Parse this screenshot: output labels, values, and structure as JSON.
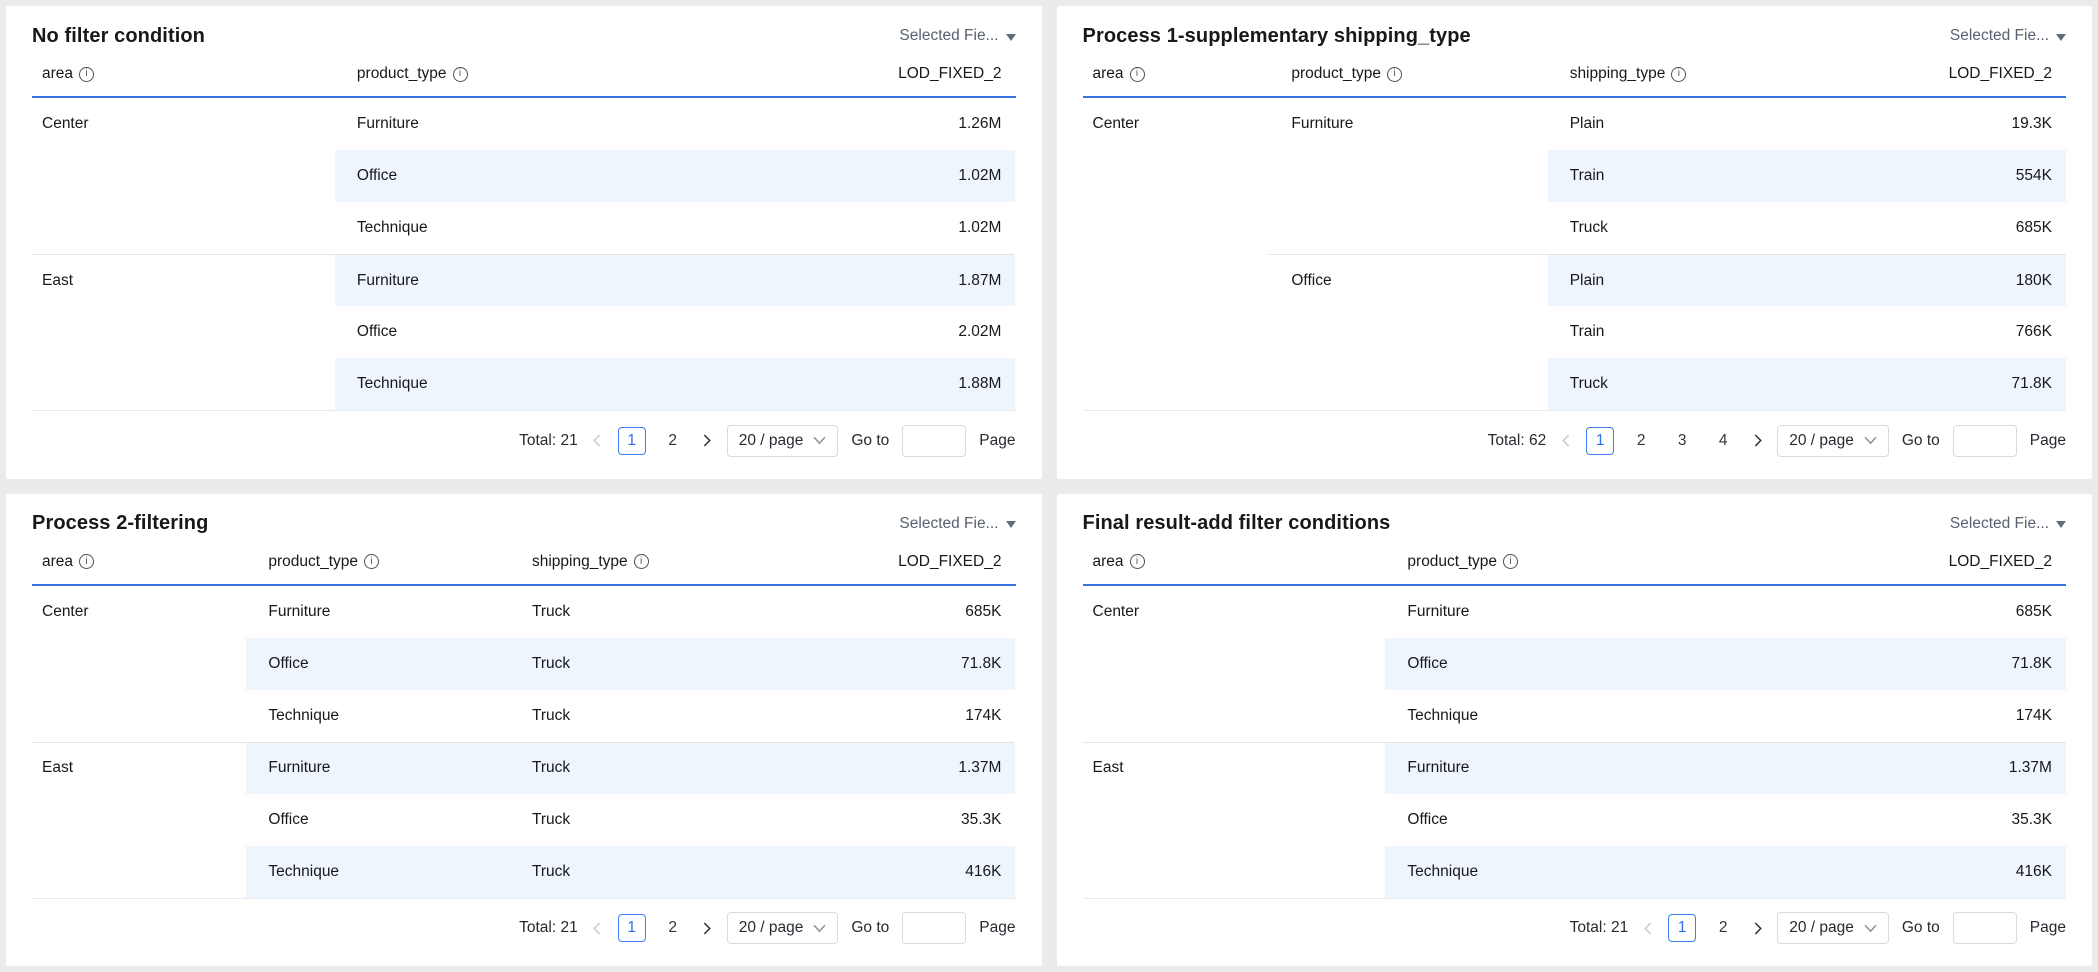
{
  "colors": {
    "accent_blue": "#3572e3",
    "stripe_bg": "#eff5fd",
    "active_page_blue": "#2f6ff2",
    "page_bg": "#ebebeb"
  },
  "panels": [
    {
      "title": "No filter condition",
      "selector_label": "Selected Fie...",
      "columns": [
        {
          "label": "area",
          "info": true
        },
        {
          "label": "product_type",
          "info": true
        },
        {
          "label": "LOD_FIXED_2",
          "info": false
        }
      ],
      "stripe_start_col": 1,
      "divider": {
        "row": 3,
        "start_col": 0
      },
      "rows": [
        [
          "Center",
          "Furniture",
          "1.26M"
        ],
        [
          "",
          "Office",
          "1.02M"
        ],
        [
          "",
          "Technique",
          "1.02M"
        ],
        [
          "East",
          "Furniture",
          "1.87M"
        ],
        [
          "",
          "Office",
          "2.02M"
        ],
        [
          "",
          "Technique",
          "1.88M"
        ]
      ],
      "pagination": {
        "total": "Total: 21",
        "pages": [
          "1",
          "2"
        ],
        "active": "1",
        "page_size": "20 / page",
        "goto_label": "Go to",
        "page_label": "Page"
      }
    },
    {
      "title": "Process 1-supplementary shipping_type",
      "selector_label": "Selected Fie...",
      "columns": [
        {
          "label": "area",
          "info": true
        },
        {
          "label": "product_type",
          "info": true
        },
        {
          "label": "shipping_type",
          "info": true
        },
        {
          "label": "LOD_FIXED_2",
          "info": false
        }
      ],
      "stripe_start_col": 2,
      "divider": {
        "row": 3,
        "start_col": 1
      },
      "rows": [
        [
          "Center",
          "Furniture",
          "Plain",
          "19.3K"
        ],
        [
          "",
          "",
          "Train",
          "554K"
        ],
        [
          "",
          "",
          "Truck",
          "685K"
        ],
        [
          "",
          "Office",
          "Plain",
          "180K"
        ],
        [
          "",
          "",
          "Train",
          "766K"
        ],
        [
          "",
          "",
          "Truck",
          "71.8K"
        ]
      ],
      "pagination": {
        "total": "Total: 62",
        "pages": [
          "1",
          "2",
          "3",
          "4"
        ],
        "active": "1",
        "page_size": "20 / page",
        "goto_label": "Go to",
        "page_label": "Page"
      }
    },
    {
      "title": "Process 2-filtering",
      "selector_label": "Selected Fie...",
      "columns": [
        {
          "label": "area",
          "info": true
        },
        {
          "label": "product_type",
          "info": true
        },
        {
          "label": "shipping_type",
          "info": true
        },
        {
          "label": "LOD_FIXED_2",
          "info": false
        }
      ],
      "stripe_start_col": 1,
      "divider": {
        "row": 3,
        "start_col": 0
      },
      "rows": [
        [
          "Center",
          "Furniture",
          "Truck",
          "685K"
        ],
        [
          "",
          "Office",
          "Truck",
          "71.8K"
        ],
        [
          "",
          "Technique",
          "Truck",
          "174K"
        ],
        [
          "East",
          "Furniture",
          "Truck",
          "1.37M"
        ],
        [
          "",
          "Office",
          "Truck",
          "35.3K"
        ],
        [
          "",
          "Technique",
          "Truck",
          "416K"
        ]
      ],
      "pagination": {
        "total": "Total: 21",
        "pages": [
          "1",
          "2"
        ],
        "active": "1",
        "page_size": "20 / page",
        "goto_label": "Go to",
        "page_label": "Page"
      }
    },
    {
      "title": "Final result-add filter conditions",
      "selector_label": "Selected Fie...",
      "columns": [
        {
          "label": "area",
          "info": true
        },
        {
          "label": "product_type",
          "info": true
        },
        {
          "label": "LOD_FIXED_2",
          "info": false
        }
      ],
      "stripe_start_col": 1,
      "divider": {
        "row": 3,
        "start_col": 0
      },
      "rows": [
        [
          "Center",
          "Furniture",
          "685K"
        ],
        [
          "",
          "Office",
          "71.8K"
        ],
        [
          "",
          "Technique",
          "174K"
        ],
        [
          "East",
          "Furniture",
          "1.37M"
        ],
        [
          "",
          "Office",
          "35.3K"
        ],
        [
          "",
          "Technique",
          "416K"
        ]
      ],
      "pagination": {
        "total": "Total: 21",
        "pages": [
          "1",
          "2"
        ],
        "active": "1",
        "page_size": "20 / page",
        "goto_label": "Go to",
        "page_label": "Page"
      }
    }
  ]
}
